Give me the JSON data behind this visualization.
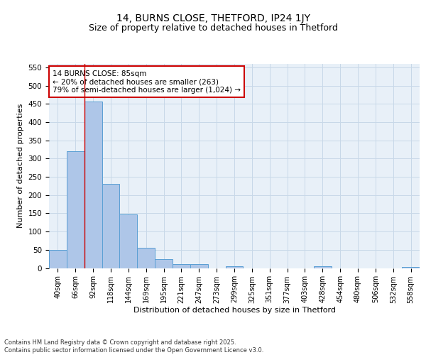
{
  "title1": "14, BURNS CLOSE, THETFORD, IP24 1JY",
  "title2": "Size of property relative to detached houses in Thetford",
  "xlabel": "Distribution of detached houses by size in Thetford",
  "ylabel": "Number of detached properties",
  "bar_labels": [
    "40sqm",
    "66sqm",
    "92sqm",
    "118sqm",
    "144sqm",
    "169sqm",
    "195sqm",
    "221sqm",
    "247sqm",
    "273sqm",
    "299sqm",
    "325sqm",
    "351sqm",
    "377sqm",
    "403sqm",
    "428sqm",
    "454sqm",
    "480sqm",
    "506sqm",
    "532sqm",
    "558sqm"
  ],
  "bar_values": [
    50,
    320,
    456,
    231,
    148,
    55,
    25,
    10,
    10,
    0,
    5,
    0,
    0,
    0,
    0,
    4,
    0,
    0,
    0,
    0,
    3
  ],
  "bar_color": "#aec6e8",
  "bar_edge_color": "#5a9fd4",
  "annotation_text": "14 BURNS CLOSE: 85sqm\n← 20% of detached houses are smaller (263)\n79% of semi-detached houses are larger (1,024) →",
  "annotation_box_color": "#ffffff",
  "annotation_box_edge_color": "#cc0000",
  "red_line_x": 1.5,
  "ylim": [
    0,
    560
  ],
  "yticks": [
    0,
    50,
    100,
    150,
    200,
    250,
    300,
    350,
    400,
    450,
    500,
    550
  ],
  "grid_color": "#c8d8e8",
  "bg_color": "#e8f0f8",
  "footer_text": "Contains HM Land Registry data © Crown copyright and database right 2025.\nContains public sector information licensed under the Open Government Licence v3.0.",
  "title_fontsize": 10,
  "subtitle_fontsize": 9,
  "label_fontsize": 8,
  "tick_fontsize": 7,
  "annotation_fontsize": 7.5
}
